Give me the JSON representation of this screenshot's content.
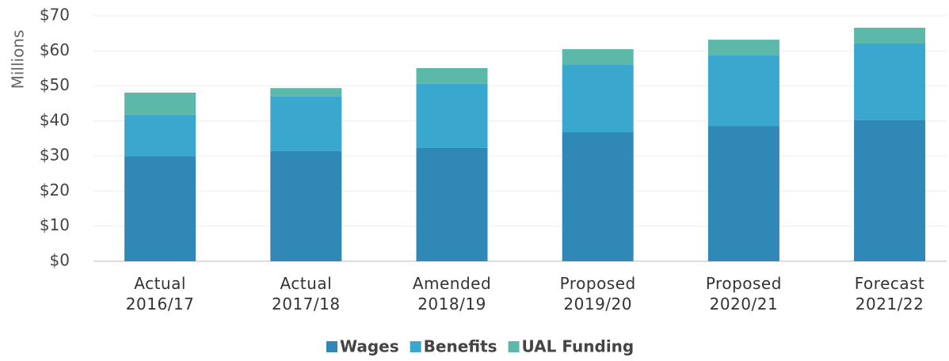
{
  "chart_data": {
    "type": "stacked_bar",
    "y_axis_label": "Millions",
    "categories": [
      "Actual 2016/17",
      "Actual 2017/18",
      "Amended 2018/19",
      "Proposed 2019/20",
      "Proposed 2020/21",
      "Forecast 2021/22"
    ],
    "series": [
      {
        "name": "Wages",
        "color": "#2f88b6",
        "values": [
          30.0,
          31.4,
          32.3,
          36.8,
          38.6,
          40.2
        ]
      },
      {
        "name": "Benefits",
        "color": "#3aa7cf",
        "values": [
          11.8,
          15.6,
          18.3,
          19.2,
          20.1,
          21.9
        ]
      },
      {
        "name": "UAL Funding",
        "color": "#5cb8a9",
        "values": [
          6.3,
          2.4,
          4.5,
          4.5,
          4.5,
          4.5
        ]
      }
    ],
    "ylim": [
      0,
      70
    ],
    "yticks": [
      {
        "value": 0,
        "label": "$0"
      },
      {
        "value": 10,
        "label": "$10"
      },
      {
        "value": 20,
        "label": "$20"
      },
      {
        "value": 30,
        "label": "$30"
      },
      {
        "value": 40,
        "label": "$40"
      },
      {
        "value": 50,
        "label": "$50"
      },
      {
        "value": 60,
        "label": "$60"
      },
      {
        "value": 70,
        "label": "$70"
      }
    ],
    "grid": true,
    "legend": "bottom"
  }
}
